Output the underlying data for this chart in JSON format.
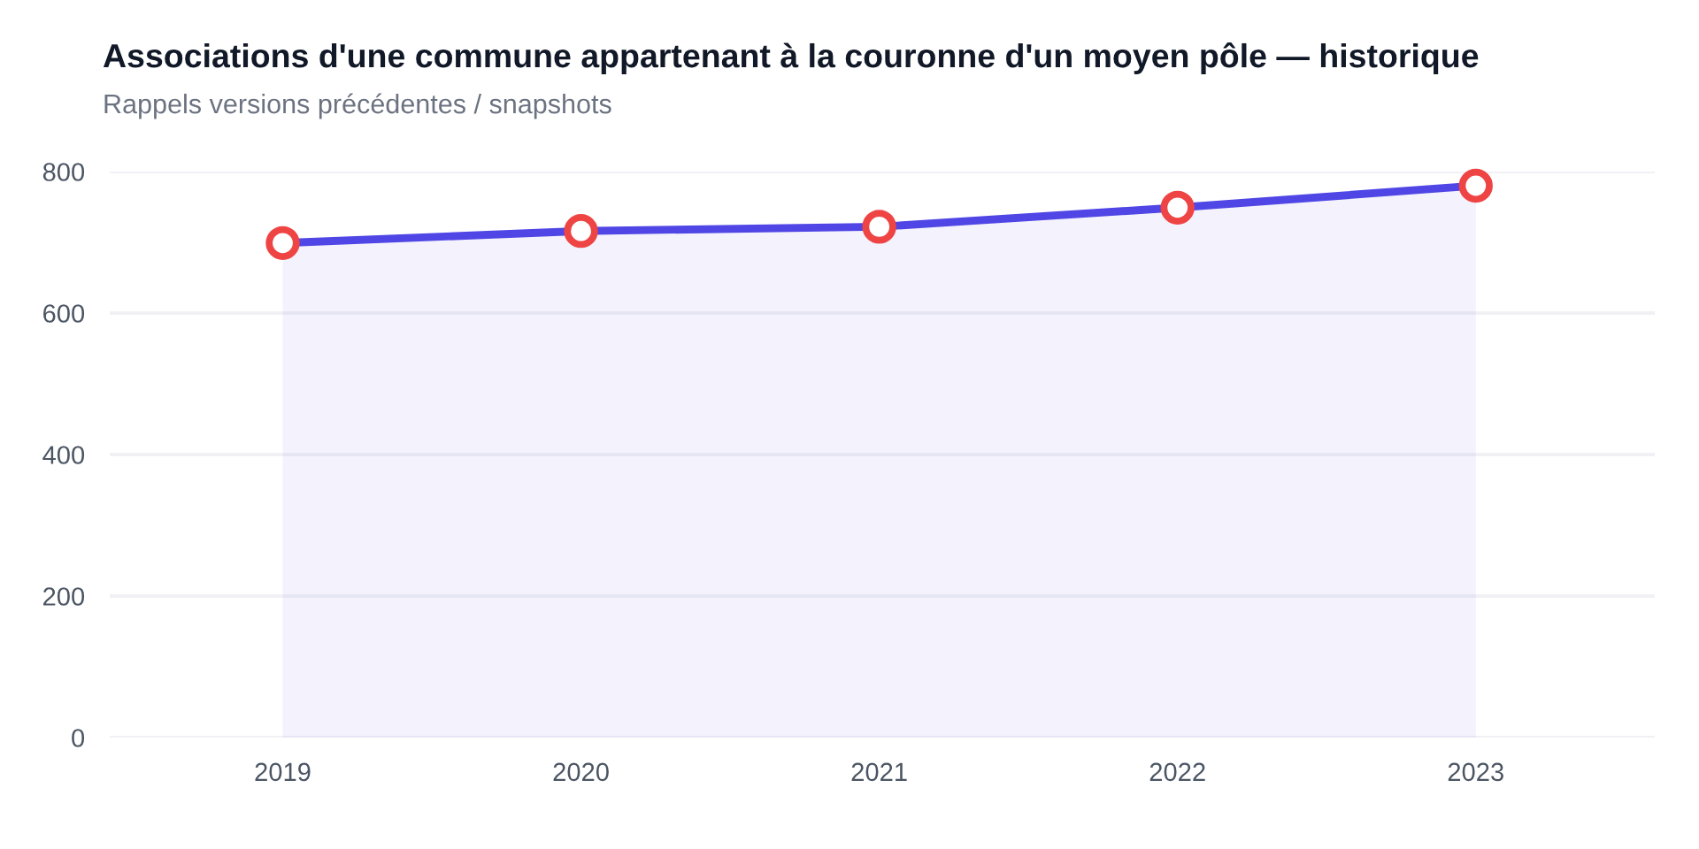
{
  "chart_data": {
    "type": "area",
    "title": "Associations d'une commune appartenant à la couronne d'un moyen pôle — historique",
    "subtitle": "Rappels versions précédentes / snapshots",
    "categories": [
      "2019",
      "2020",
      "2021",
      "2022",
      "2023"
    ],
    "series": [
      {
        "color": "#4f46e5",
        "values": [
          699,
          716,
          722,
          749,
          780
        ]
      }
    ],
    "ylim": [
      0,
      800
    ],
    "yticks": [
      0,
      200,
      400,
      600,
      800
    ],
    "grid": "y",
    "marker": "circle",
    "line_style": "solid"
  }
}
